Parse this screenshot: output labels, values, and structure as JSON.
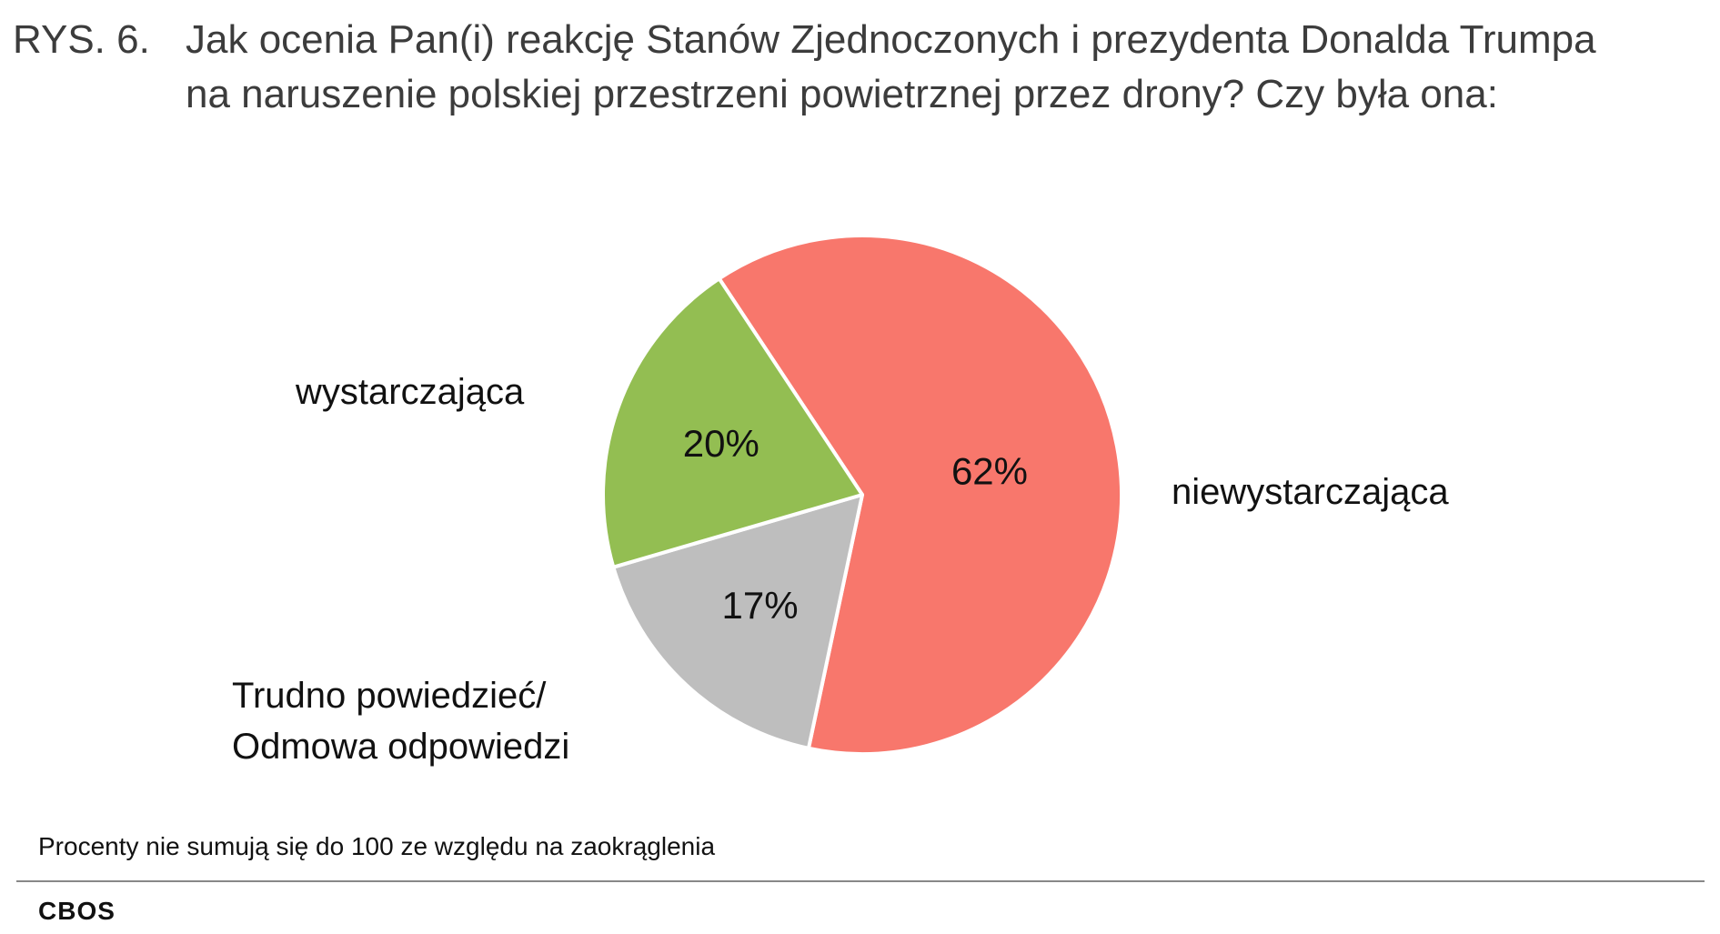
{
  "title": {
    "prefix": "RYS. 6.",
    "text": "Jak ocenia Pan(i) reakcję Stanów Zjednoczonych i prezydenta Donalda Trumpa na naruszenie polskiej przestrzeni powietrznej przez drony? Czy była ona:"
  },
  "chart_data": {
    "type": "pie",
    "slices": [
      {
        "label": "niewystarczająca",
        "value": 62,
        "value_label": "62%",
        "color": "#F8776C"
      },
      {
        "label": "Trudno powiedzieć/ Odmowa odpowiedzi",
        "label_lines": [
          "Trudno powiedzieć/",
          "Odmowa odpowiedzi"
        ],
        "value": 17,
        "value_label": "17%",
        "color": "#BEBEBE"
      },
      {
        "label": "wystarczająca",
        "value": 20,
        "value_label": "20%",
        "color": "#93BE52"
      }
    ],
    "start": "top, clockwise",
    "legend": "none (direct labels)"
  },
  "note": "Procenty nie sumują się do 100 ze względu na zaokrąglenia",
  "brand": "CBOS"
}
